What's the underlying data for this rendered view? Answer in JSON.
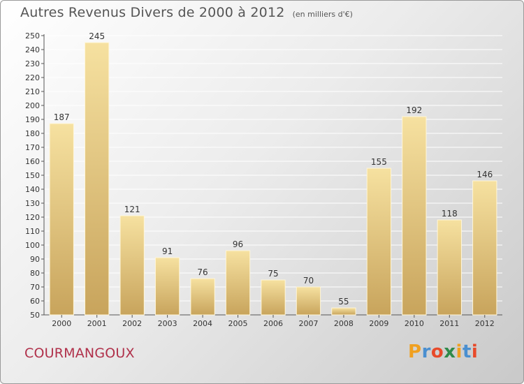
{
  "header": {
    "title": "Autres Revenus Divers de 2000 à 2012",
    "unit": "(en milliers d'€)"
  },
  "footer": {
    "place": "COURMANGOUX",
    "logo_letters": [
      "P",
      "r",
      "o",
      "x",
      "i",
      "t",
      "i"
    ],
    "logo_colors": [
      "#f0a020",
      "#4a8fd0",
      "#e84a2a",
      "#2f8a4a",
      "#f0a020",
      "#4a8fd0",
      "#e84a2a"
    ]
  },
  "colors": {
    "bar_light": "#f6e1a0",
    "bar_dark": "#c8a45c",
    "grid": "#ffffff",
    "axis_text": "#333333"
  },
  "chart_data": {
    "type": "bar",
    "title": "Autres Revenus Divers de 2000 à 2012",
    "subtitle": "(en milliers d'€)",
    "categories": [
      "2000",
      "2001",
      "2002",
      "2003",
      "2004",
      "2005",
      "2006",
      "2007",
      "2008",
      "2009",
      "2010",
      "2011",
      "2012"
    ],
    "values": [
      187,
      245,
      121,
      91,
      76,
      96,
      75,
      70,
      55,
      155,
      192,
      118,
      146
    ],
    "ylim": [
      50,
      250
    ],
    "ytick_step": 10,
    "grid": true
  }
}
